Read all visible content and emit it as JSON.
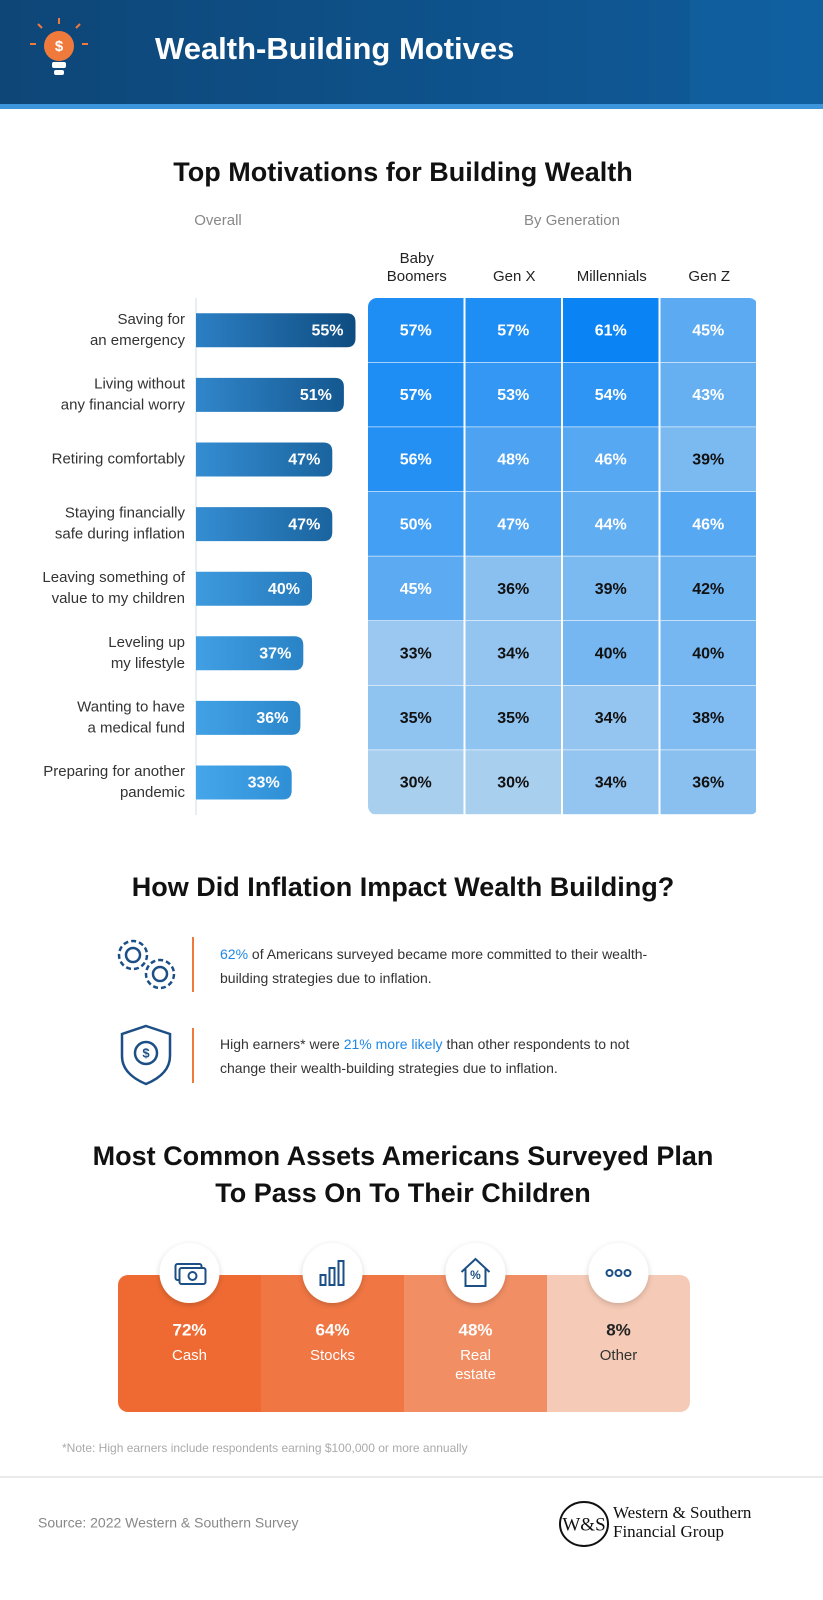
{
  "header": {
    "title": "Wealth-Building Motives"
  },
  "motivations": {
    "title": "Top Motivations for Building Wealth",
    "overall_heading": "Overall",
    "generation_heading": "By Generation",
    "generations": [
      [
        "Baby",
        "Boomers"
      ],
      [
        "Gen X"
      ],
      [
        "Millennials"
      ],
      [
        "Gen Z"
      ]
    ],
    "rows": [
      {
        "label": [
          "Saving for",
          "an emergency"
        ],
        "overall": 55,
        "overall_label": "55%",
        "values": [
          57,
          57,
          61,
          45
        ],
        "value_labels": [
          "57%",
          "57%",
          "61%",
          "45%"
        ]
      },
      {
        "label": [
          "Living without",
          "any financial worry"
        ],
        "overall": 51,
        "overall_label": "51%",
        "values": [
          57,
          53,
          54,
          43
        ],
        "value_labels": [
          "57%",
          "53%",
          "54%",
          "43%"
        ]
      },
      {
        "label": [
          "Retiring comfortably"
        ],
        "overall": 47,
        "overall_label": "47%",
        "values": [
          56,
          48,
          46,
          39
        ],
        "value_labels": [
          "56%",
          "48%",
          "46%",
          "39%"
        ]
      },
      {
        "label": [
          "Staying financially",
          "safe during inflation"
        ],
        "overall": 47,
        "overall_label": "47%",
        "values": [
          50,
          47,
          44,
          46
        ],
        "value_labels": [
          "50%",
          "47%",
          "44%",
          "46%"
        ]
      },
      {
        "label": [
          "Leaving something of",
          "value to my children"
        ],
        "overall": 40,
        "overall_label": "40%",
        "values": [
          45,
          36,
          39,
          42
        ],
        "value_labels": [
          "45%",
          "36%",
          "39%",
          "42%"
        ]
      },
      {
        "label": [
          "Leveling up",
          "my lifestyle"
        ],
        "overall": 37,
        "overall_label": "37%",
        "values": [
          33,
          34,
          40,
          40
        ],
        "value_labels": [
          "33%",
          "34%",
          "40%",
          "40%"
        ]
      },
      {
        "label": [
          "Wanting to have",
          "a medical fund"
        ],
        "overall": 36,
        "overall_label": "36%",
        "values": [
          35,
          35,
          34,
          38
        ],
        "value_labels": [
          "35%",
          "35%",
          "34%",
          "38%"
        ]
      },
      {
        "label": [
          "Preparing for another",
          "pandemic"
        ],
        "overall": 33,
        "overall_label": "33%",
        "values": [
          30,
          30,
          34,
          36
        ],
        "value_labels": [
          "30%",
          "30%",
          "34%",
          "36%"
        ]
      }
    ]
  },
  "inflation": {
    "title": "How Did Inflation Impact Wealth Building?",
    "items": [
      {
        "segments": [
          {
            "text": "62%",
            "emphasis": true
          },
          {
            "text": " of Americans surveyed became more committed to their wealth-building strategies due to inflation.",
            "emphasis": false
          }
        ]
      },
      {
        "segments": [
          {
            "text": "High earners* were ",
            "emphasis": false
          },
          {
            "text": "21% more likely",
            "emphasis": true
          },
          {
            "text": " than other respondents to not change their wealth-building strategies due to inflation.",
            "emphasis": false
          }
        ]
      }
    ]
  },
  "assets": {
    "title": [
      "Most Common Assets Americans Surveyed Plan",
      "To Pass On To Their Children"
    ],
    "items": [
      {
        "value": 72,
        "value_label": "72%",
        "name": "Cash"
      },
      {
        "value": 64,
        "value_label": "64%",
        "name": "Stocks"
      },
      {
        "value": 48,
        "value_label": "48%",
        "name": "Real estate"
      },
      {
        "value": 8,
        "value_label": "8%",
        "name": "Other"
      }
    ]
  },
  "note": "*Note: High earners include respondents earning $100,000 or more annually",
  "footer": {
    "source": "Source: 2022 Western & Southern Survey",
    "logo_mark": "W&S",
    "logo_lines": [
      "Western & Southern",
      "Financial Group"
    ]
  }
}
